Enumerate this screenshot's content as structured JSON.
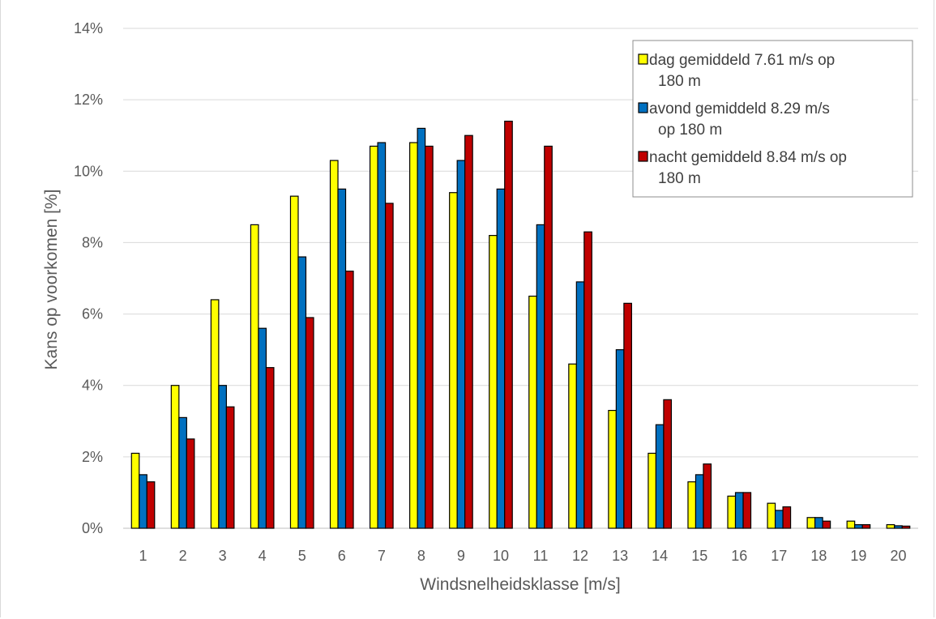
{
  "caption": "",
  "chart_data": {
    "type": "bar",
    "title": "",
    "xlabel": "Windsnelheidsklasse [m/s]",
    "ylabel": "Kans op voorkomen [%]",
    "ylim": [
      0,
      14
    ],
    "yticks": [
      "0%",
      "2%",
      "4%",
      "6%",
      "8%",
      "10%",
      "12%",
      "14%"
    ],
    "categories": [
      "1",
      "2",
      "3",
      "4",
      "5",
      "6",
      "7",
      "8",
      "9",
      "10",
      "11",
      "12",
      "13",
      "14",
      "15",
      "16",
      "17",
      "18",
      "19",
      "20"
    ],
    "series": [
      {
        "name": "dag gemiddeld 7.61 m/s op 180 m",
        "color": "#ffff00",
        "values": [
          2.1,
          4.0,
          6.4,
          8.5,
          9.3,
          10.3,
          10.7,
          10.8,
          9.4,
          8.2,
          6.5,
          4.6,
          3.3,
          2.1,
          1.3,
          0.9,
          0.7,
          0.3,
          0.2,
          0.1
        ]
      },
      {
        "name": "avond gemiddeld 8.29 m/s op 180 m",
        "color": "#0070c0",
        "values": [
          1.5,
          3.1,
          4.0,
          5.6,
          7.6,
          9.5,
          10.8,
          11.2,
          10.3,
          9.5,
          8.5,
          6.9,
          5.0,
          2.9,
          1.5,
          1.0,
          0.5,
          0.3,
          0.1,
          0.07
        ]
      },
      {
        "name": "nacht gemiddeld 8.84 m/s op 180 m",
        "color": "#c00000",
        "values": [
          1.3,
          2.5,
          3.4,
          4.5,
          5.9,
          7.2,
          9.1,
          10.7,
          11.0,
          11.4,
          10.7,
          8.3,
          6.3,
          3.6,
          1.8,
          1.0,
          0.6,
          0.2,
          0.1,
          0.06
        ]
      }
    ],
    "legend": {
      "position": "top-right",
      "entries": [
        {
          "line1": "dag gemiddeld 7.61 m/s op",
          "line2": "180 m"
        },
        {
          "line1": "avond gemiddeld 8.29 m/s",
          "line2": "op 180 m"
        },
        {
          "line1": "nacht gemiddeld 8.84 m/s op",
          "line2": "180 m"
        }
      ]
    },
    "grid": true
  }
}
